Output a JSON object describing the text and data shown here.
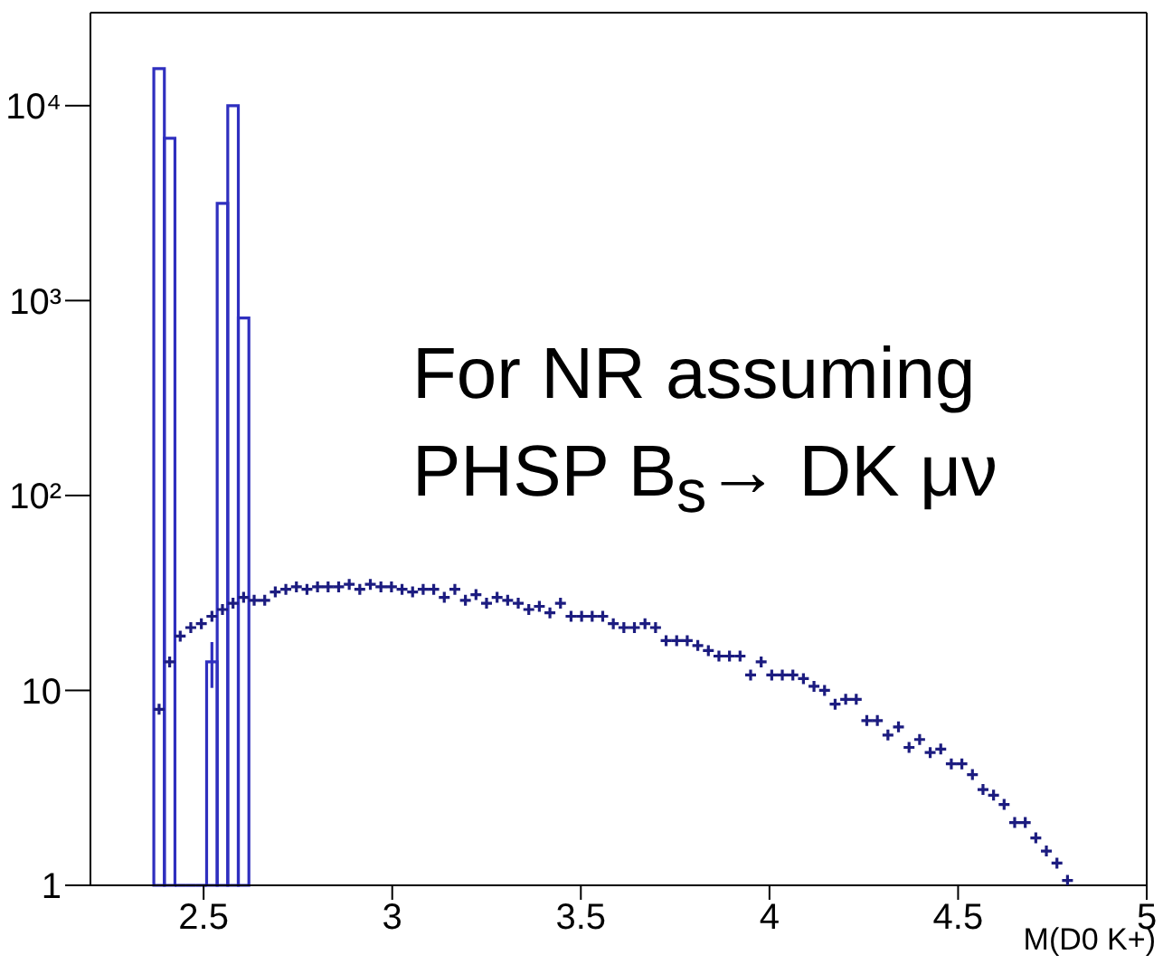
{
  "chart_data": {
    "type": "histogram",
    "xlabel": "M(D0 K+)",
    "annotations": [
      "For NR assuming",
      "PHSP B$_{s}$→ DK μν"
    ],
    "xlim": [
      2.2,
      5
    ],
    "xticks": [
      2.5,
      3,
      3.5,
      4,
      4.5,
      5
    ],
    "ylim": [
      1,
      30000
    ],
    "yticks": [
      1,
      10,
      {
        "value": 100,
        "label": "10²"
      },
      {
        "value": 1000,
        "label": "10³"
      },
      {
        "value": 10000,
        "label": "10⁴"
      }
    ],
    "log": "y",
    "series": [
      {
        "type": "histogram",
        "color": "#2f2fbf",
        "bins": [
          2.368,
          2.396,
          2.424,
          2.452,
          2.48,
          2.508,
          2.536,
          2.564,
          2.592,
          2.62
        ],
        "values": [
          15500,
          6800,
          null,
          null,
          null,
          14,
          3150,
          10000,
          815
        ],
        "errors": [
          null,
          null,
          null,
          null,
          null,
          3.7,
          null,
          null,
          null
        ]
      },
      {
        "type": "scatter",
        "color": "#1c1c80",
        "marker": "cross",
        "x": [
          2.382,
          2.41,
          2.438,
          2.466,
          2.494,
          2.522,
          2.55,
          2.578,
          2.606,
          2.634,
          2.662,
          2.69,
          2.718,
          2.746,
          2.774,
          2.802,
          2.83,
          2.858,
          2.886,
          2.914,
          2.942,
          2.97,
          2.998,
          3.026,
          3.054,
          3.082,
          3.11,
          3.138,
          3.166,
          3.194,
          3.222,
          3.25,
          3.278,
          3.306,
          3.334,
          3.362,
          3.39,
          3.418,
          3.446,
          3.474,
          3.502,
          3.53,
          3.558,
          3.586,
          3.614,
          3.642,
          3.67,
          3.698,
          3.726,
          3.754,
          3.782,
          3.81,
          3.838,
          3.866,
          3.894,
          3.922,
          3.95,
          3.978,
          4.006,
          4.034,
          4.062,
          4.09,
          4.118,
          4.146,
          4.174,
          4.202,
          4.23,
          4.258,
          4.286,
          4.314,
          4.342,
          4.37,
          4.398,
          4.426,
          4.454,
          4.482,
          4.51,
          4.538,
          4.566,
          4.594,
          4.622,
          4.65,
          4.678,
          4.706,
          4.734,
          4.762,
          4.79
        ],
        "values": [
          8,
          14,
          19,
          21,
          22,
          24,
          26,
          28,
          30,
          29,
          29,
          32,
          33,
          34,
          33,
          34,
          34,
          34,
          35,
          33,
          35,
          34,
          34,
          33,
          32,
          33,
          33,
          30,
          33,
          29,
          31,
          28,
          30,
          29,
          28,
          26,
          27,
          25,
          28,
          24,
          24,
          24,
          24,
          22,
          21,
          21,
          22,
          21,
          18,
          18,
          18,
          17,
          16,
          15,
          15,
          15,
          12,
          14,
          12,
          12,
          12,
          11.5,
          10.5,
          10,
          8.5,
          9,
          9,
          7,
          7,
          5.9,
          6.5,
          5.1,
          5.6,
          4.8,
          5,
          4.2,
          4.2,
          3.7,
          3.1,
          2.9,
          2.6,
          2.1,
          2.1,
          1.75,
          1.5,
          1.3,
          1.06
        ]
      }
    ]
  }
}
